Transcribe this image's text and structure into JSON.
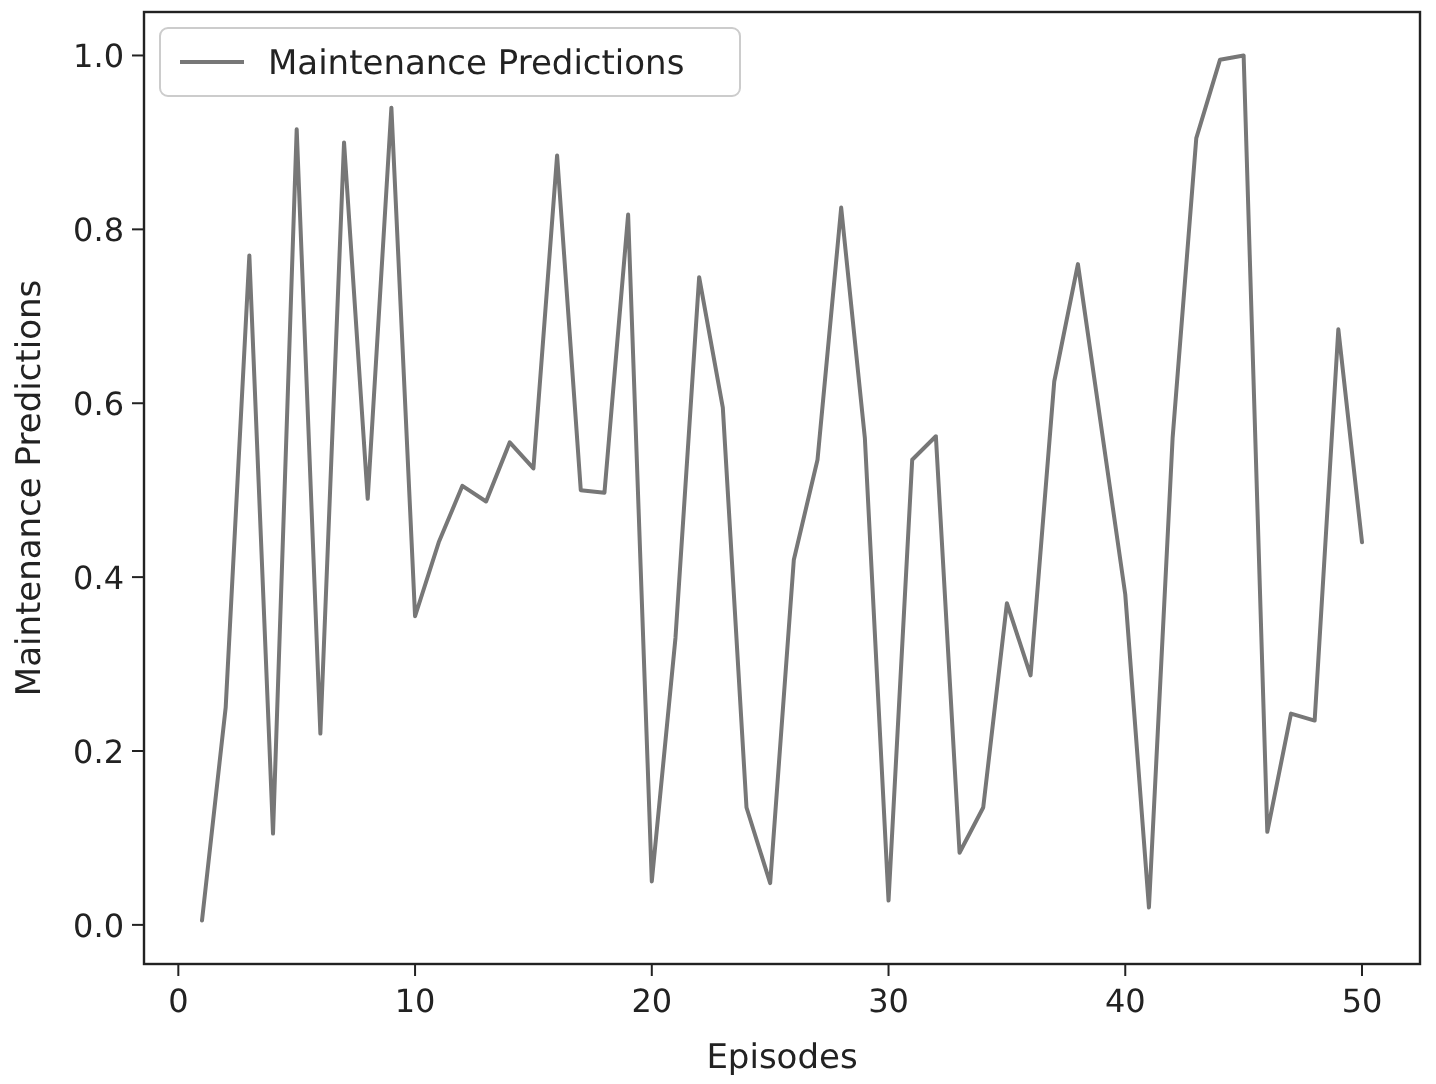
{
  "chart_data": {
    "type": "line",
    "xlabel": "Episodes",
    "ylabel": "Maintenance Predictions",
    "x": [
      1,
      2,
      3,
      4,
      5,
      6,
      7,
      8,
      9,
      10,
      11,
      12,
      13,
      14,
      15,
      16,
      17,
      18,
      19,
      20,
      21,
      22,
      23,
      24,
      25,
      26,
      27,
      28,
      29,
      30,
      31,
      32,
      33,
      34,
      35,
      36,
      37,
      38,
      39,
      40,
      41,
      42,
      43,
      44,
      45,
      46,
      47,
      48,
      49,
      50
    ],
    "series": [
      {
        "name": "Maintenance Predictions",
        "color": "#777777",
        "values": [
          0.005,
          0.25,
          0.77,
          0.105,
          0.915,
          0.22,
          0.9,
          0.49,
          0.94,
          0.355,
          0.44,
          0.505,
          0.487,
          0.555,
          0.525,
          0.885,
          0.5,
          0.497,
          0.817,
          0.05,
          0.33,
          0.745,
          0.595,
          0.135,
          0.048,
          0.42,
          0.535,
          0.825,
          0.56,
          0.028,
          0.535,
          0.562,
          0.083,
          0.135,
          0.37,
          0.287,
          0.625,
          0.76,
          0.57,
          0.38,
          0.02,
          0.56,
          0.905,
          0.995,
          1.0,
          0.107,
          0.243,
          0.235,
          0.685,
          0.44
        ]
      }
    ],
    "xlim": [
      -1.45,
      52.45
    ],
    "xticks": [
      0,
      10,
      20,
      30,
      40,
      50
    ],
    "ylim": [
      -0.045,
      1.05
    ],
    "yticks": [
      {
        "value": 0,
        "label": "0.0"
      },
      {
        "value": 0.2,
        "label": "0.2"
      },
      {
        "value": 0.4,
        "label": "0.4"
      },
      {
        "value": 0.6,
        "label": "0.6"
      },
      {
        "value": 0.8,
        "label": "0.8"
      },
      {
        "value": 1,
        "label": "1.0"
      }
    ],
    "legend": "top left",
    "grid": false,
    "marker": "none",
    "line_style": "solid"
  }
}
